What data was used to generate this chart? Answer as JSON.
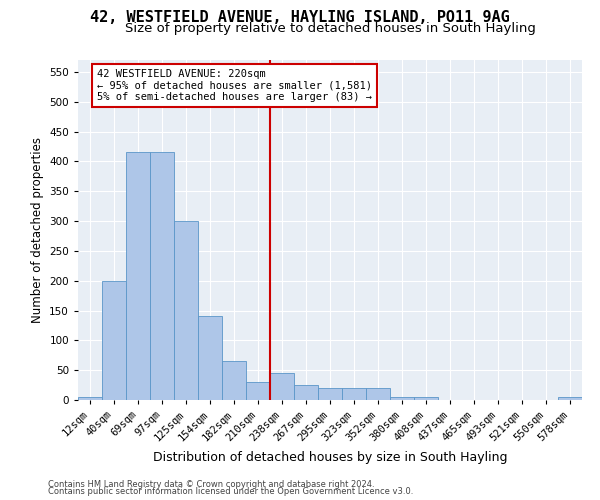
{
  "title": "42, WESTFIELD AVENUE, HAYLING ISLAND, PO11 9AG",
  "subtitle": "Size of property relative to detached houses in South Hayling",
  "xlabel": "Distribution of detached houses by size in South Hayling",
  "ylabel": "Number of detached properties",
  "categories": [
    "12sqm",
    "40sqm",
    "69sqm",
    "97sqm",
    "125sqm",
    "154sqm",
    "182sqm",
    "210sqm",
    "238sqm",
    "267sqm",
    "295sqm",
    "323sqm",
    "352sqm",
    "380sqm",
    "408sqm",
    "437sqm",
    "465sqm",
    "493sqm",
    "521sqm",
    "550sqm",
    "578sqm"
  ],
  "values": [
    5,
    200,
    415,
    415,
    300,
    140,
    65,
    30,
    45,
    25,
    20,
    20,
    20,
    5,
    5,
    0,
    0,
    0,
    0,
    0,
    5
  ],
  "bar_color": "#aec6e8",
  "bar_edge_color": "#5a96c8",
  "vline_index": 7.5,
  "vline_color": "#cc0000",
  "annotation_text": "42 WESTFIELD AVENUE: 220sqm\n← 95% of detached houses are smaller (1,581)\n5% of semi-detached houses are larger (83) →",
  "annotation_box_color": "#cc0000",
  "ylim": [
    0,
    570
  ],
  "yticks": [
    0,
    50,
    100,
    150,
    200,
    250,
    300,
    350,
    400,
    450,
    500,
    550
  ],
  "plot_bg_color": "#e8eef5",
  "footer1": "Contains HM Land Registry data © Crown copyright and database right 2024.",
  "footer2": "Contains public sector information licensed under the Open Government Licence v3.0.",
  "title_fontsize": 11,
  "subtitle_fontsize": 9.5,
  "xlabel_fontsize": 9,
  "ylabel_fontsize": 8.5,
  "tick_fontsize": 7.5,
  "ann_fontsize": 7.5,
  "footer_fontsize": 6
}
